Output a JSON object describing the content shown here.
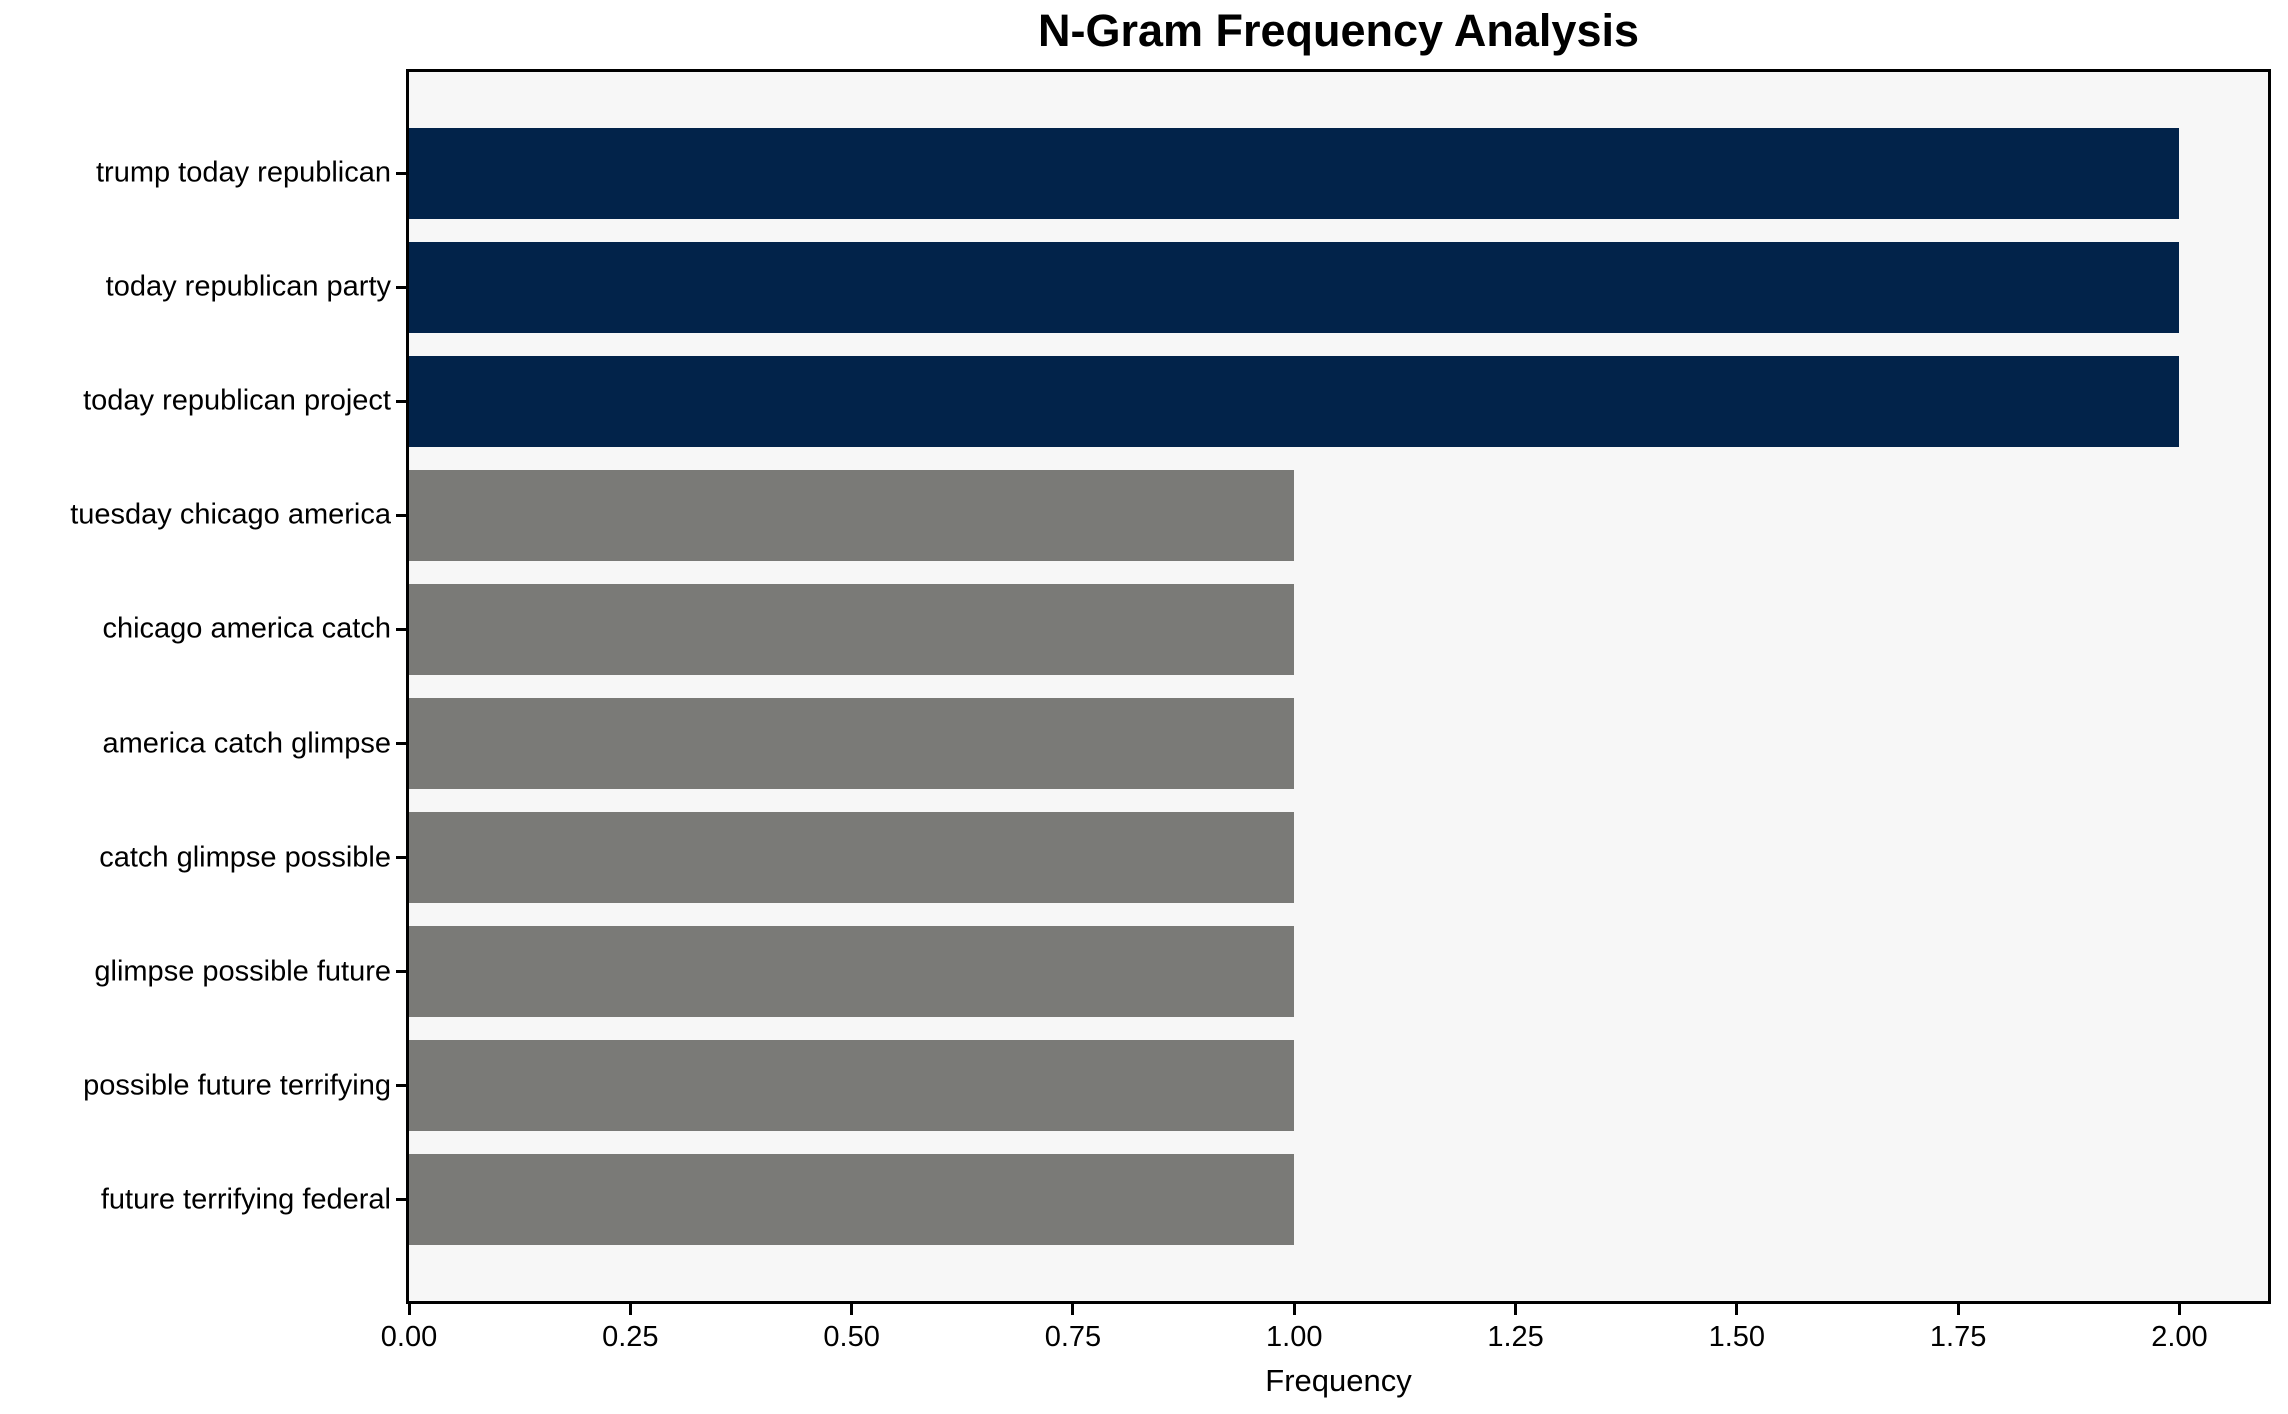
{
  "chart_data": {
    "type": "bar",
    "orientation": "horizontal",
    "title": "N-Gram Frequency Analysis",
    "xlabel": "Frequency",
    "ylabel": "",
    "categories": [
      "trump today republican",
      "today republican party",
      "today republican project",
      "tuesday chicago america",
      "chicago america catch",
      "america catch glimpse",
      "catch glimpse possible",
      "glimpse possible future",
      "possible future terrifying",
      "future terrifying federal"
    ],
    "values": [
      2,
      2,
      2,
      1,
      1,
      1,
      1,
      1,
      1,
      1
    ],
    "bar_colors": [
      "#02234A",
      "#02234A",
      "#02234A",
      "#7A7A77",
      "#7A7A77",
      "#7A7A77",
      "#7A7A77",
      "#7A7A77",
      "#7A7A77",
      "#7A7A77"
    ],
    "xlim": [
      0,
      2.1
    ],
    "x_ticks": [
      {
        "value": 0.0,
        "label": "0.00"
      },
      {
        "value": 0.25,
        "label": "0.25"
      },
      {
        "value": 0.5,
        "label": "0.50"
      },
      {
        "value": 0.75,
        "label": "0.75"
      },
      {
        "value": 1.0,
        "label": "1.00"
      },
      {
        "value": 1.25,
        "label": "1.25"
      },
      {
        "value": 1.5,
        "label": "1.50"
      },
      {
        "value": 1.75,
        "label": "1.75"
      },
      {
        "value": 2.0,
        "label": "2.00"
      }
    ],
    "grid": false,
    "legend": null,
    "colors": {
      "highlight_bar": "#02234A",
      "default_bar": "#7A7A77",
      "plot_background": "#F7F7F7",
      "figure_background": "#FFFFFF",
      "axis": "#000000"
    }
  }
}
